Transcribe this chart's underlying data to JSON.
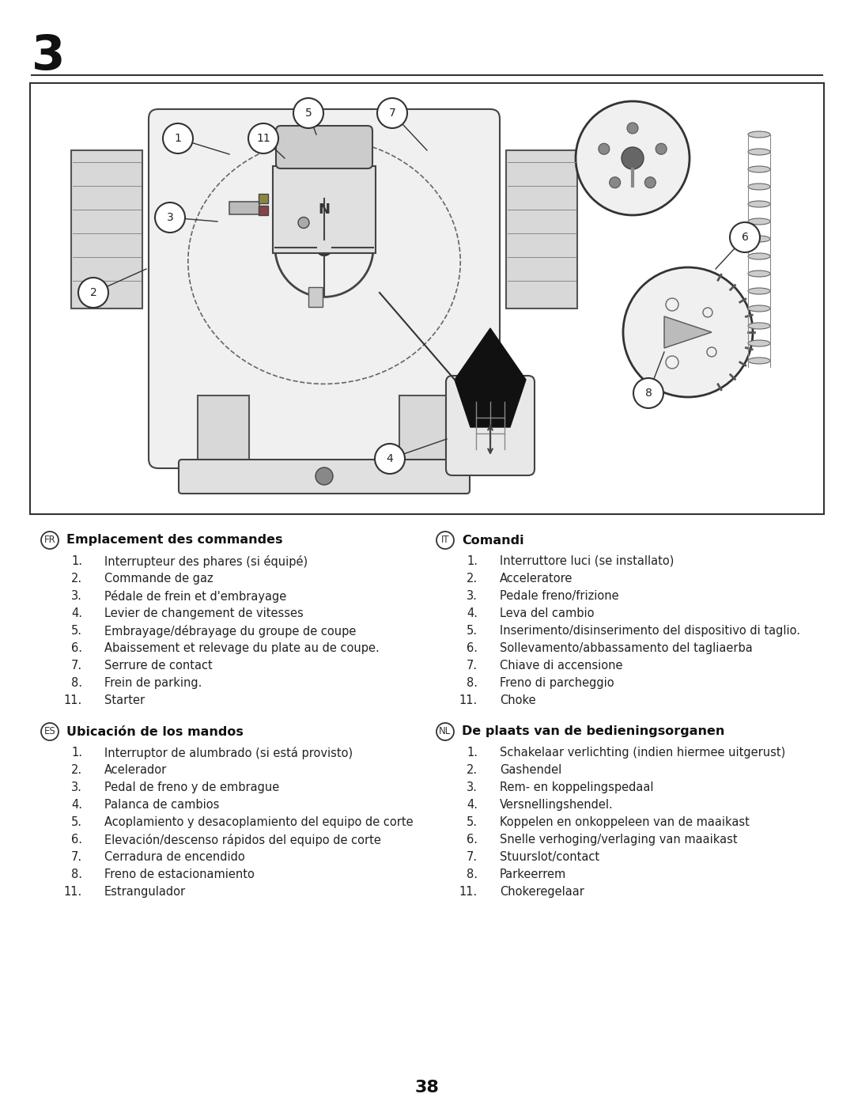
{
  "page_number": "3",
  "footer_number": "38",
  "bg_color": "#ffffff",
  "sections": [
    {
      "lang_code": "FR",
      "title": "Emplacement des commandes",
      "items": [
        [
          "1.",
          "Interrupteur des phares (si équipé)"
        ],
        [
          "2.",
          "Commande de gaz"
        ],
        [
          "3.",
          "Pédale de frein et d'embrayage"
        ],
        [
          "4.",
          "Levier de changement de vitesses"
        ],
        [
          "5.",
          "Embrayage/débrayage du groupe de coupe"
        ],
        [
          "6.",
          "Abaissement et relevage du plate au de coupe."
        ],
        [
          "7.",
          "Serrure de contact"
        ],
        [
          "8.",
          "Frein de parking."
        ],
        [
          "11.",
          "Starter"
        ]
      ]
    },
    {
      "lang_code": "ES",
      "title": "Ubicación de los mandos",
      "items": [
        [
          "1.",
          "Interruptor de alumbrado (si está provisto)"
        ],
        [
          "2.",
          "Acelerador"
        ],
        [
          "3.",
          "Pedal de freno y de embrague"
        ],
        [
          "4.",
          "Palanca de cambios"
        ],
        [
          "5.",
          "Acoplamiento y desacoplamiento del equipo de corte"
        ],
        [
          "6.",
          "Elevación/descenso rápidos del equipo de corte"
        ],
        [
          "7.",
          "Cerradura de encendido"
        ],
        [
          "8.",
          "Freno de estacionamiento"
        ],
        [
          "11.",
          "Estrangulador"
        ]
      ]
    },
    {
      "lang_code": "IT",
      "title": "Comandi",
      "items": [
        [
          "1.",
          "Interruttore luci (se installato)"
        ],
        [
          "2.",
          "Acceleratore"
        ],
        [
          "3.",
          "Pedale freno/frizione"
        ],
        [
          "4.",
          "Leva del cambio"
        ],
        [
          "5.",
          "Inserimento/disinserimento del dispositivo di taglio."
        ],
        [
          "6.",
          "Sollevamento/abbassamento del tagliaerba"
        ],
        [
          "7.",
          "Chiave di accensione"
        ],
        [
          "8.",
          "Freno di parcheggio"
        ],
        [
          "11.",
          "Choke"
        ]
      ]
    },
    {
      "lang_code": "NL",
      "title": "De plaats van de bedieningsorganen",
      "items": [
        [
          "1.",
          "Schakelaar verlichting (indien hiermee uitgerust)"
        ],
        [
          "2.",
          "Gashendel"
        ],
        [
          "3.",
          "Rem- en koppelingspedaal"
        ],
        [
          "4.",
          "Versnellingshendel."
        ],
        [
          "5.",
          "Koppelen en onkoppeleen van de maaikast"
        ],
        [
          "6.",
          "Snelle verhoging/verlaging van maaikast"
        ],
        [
          "7.",
          "Stuurslot/contact"
        ],
        [
          "8.",
          "Parkeerrem"
        ],
        [
          "11.",
          "Chokeregelaar"
        ]
      ]
    }
  ]
}
